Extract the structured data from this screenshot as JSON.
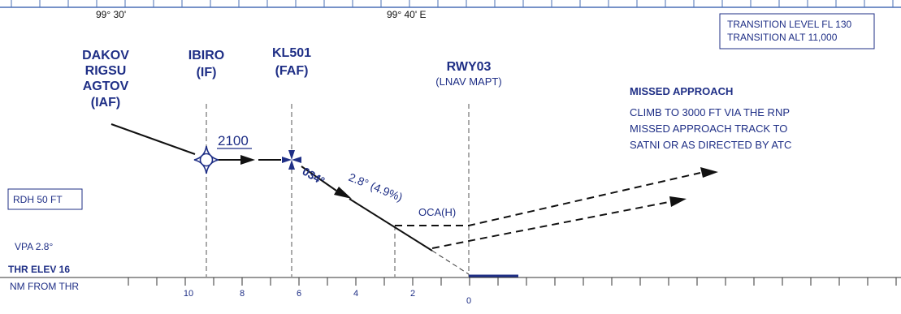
{
  "colors": {
    "accent": "#1f2f86",
    "line": "#111111",
    "grid": "#555555"
  },
  "scale": {
    "top_left_lon": "99° 30'",
    "top_right_lon": "99° 40' E",
    "nm_label": "NM FROM THR",
    "distance_labels": [
      "10",
      "8",
      "6",
      "4",
      "2",
      "0"
    ]
  },
  "transition_box": {
    "line1": "TRANSITION LEVEL FL 130",
    "line2": "TRANSITION ALT 11,000"
  },
  "fixes": {
    "iaf": {
      "names": [
        "DAKOV",
        "RIGSU",
        "AGTOV"
      ],
      "role": "(IAF)"
    },
    "if": {
      "name": "IBIRO",
      "role": "(IF)",
      "icon": "flyby-waypoint-icon"
    },
    "faf": {
      "name": "KL501",
      "role": "(FAF)",
      "icon": "flyover-waypoint-icon"
    },
    "rwy": {
      "name": "RWY03",
      "role": "(LNAV MAPT)"
    }
  },
  "segments": {
    "intermediate_altitude": "2100",
    "final_track": "034°",
    "glide_path": "2.8° (4.9%)",
    "oca_label": "OCA(H)"
  },
  "missed_approach": {
    "title": "MISSED APPROACH",
    "lines": [
      "CLIMB  TO 3000 FT VIA THE RNP",
      "MISSED APPROACH TRACK TO",
      "SATNI OR AS DIRECTED BY ATC"
    ]
  },
  "info": {
    "rdh": "RDH 50 FT",
    "vpa": "VPA 2.8°",
    "thr_elev": "THR ELEV 16"
  }
}
